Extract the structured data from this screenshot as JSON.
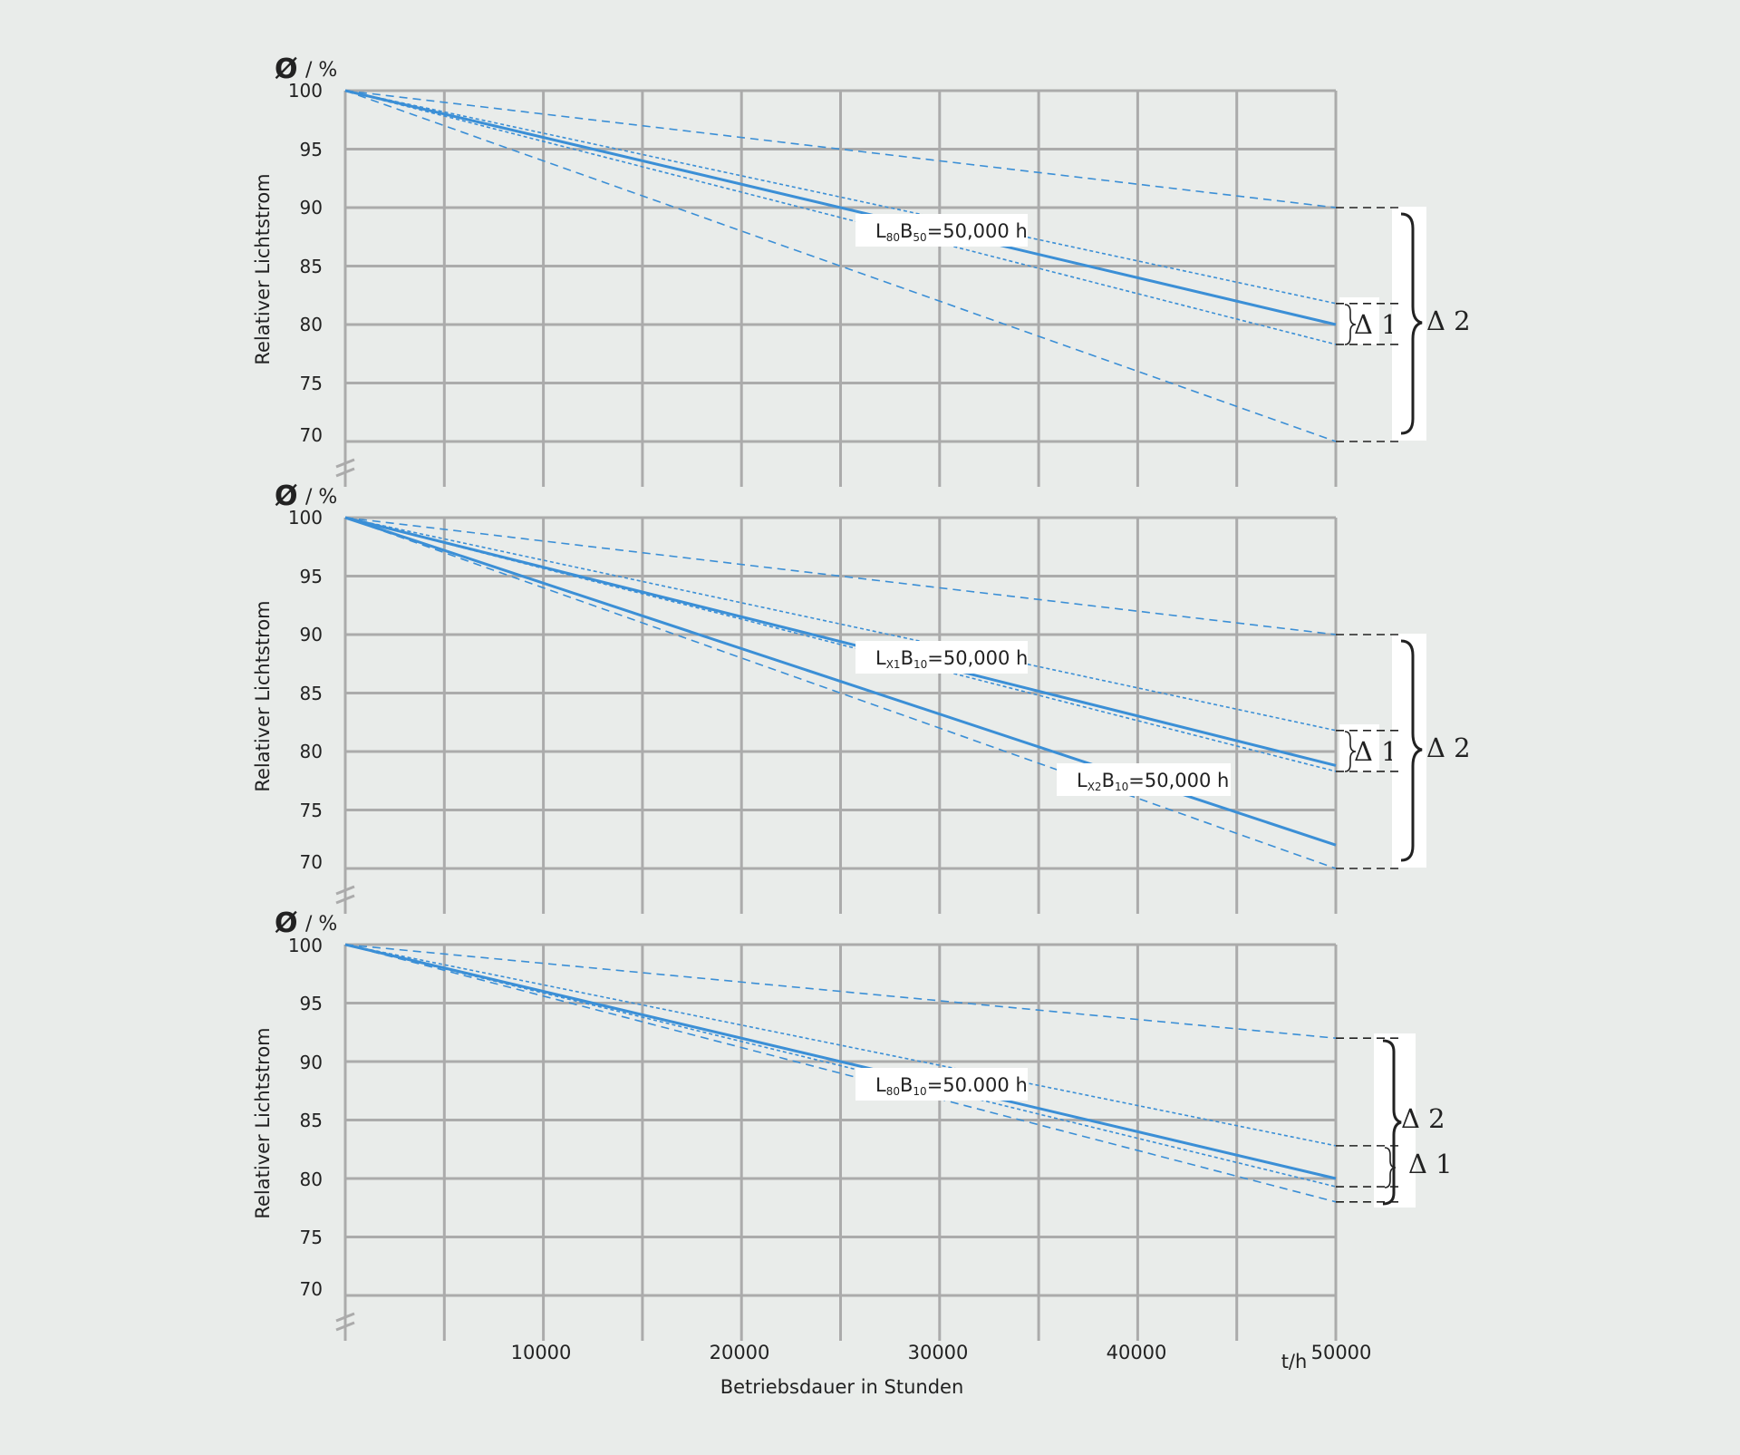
{
  "chart_data": [
    {
      "type": "line",
      "ylabel": "Relativer Lichtstrom",
      "y_unit": "/ %",
      "y_unit_symbol": "Ø",
      "yticks": [
        100,
        95,
        90,
        85,
        80,
        75,
        70
      ],
      "ylim": [
        70,
        100
      ],
      "xlim": [
        0,
        50000
      ],
      "grid": true,
      "series": [
        {
          "style": "dashed",
          "x": [
            0,
            50000
          ],
          "values": [
            100,
            90
          ]
        },
        {
          "style": "dotted",
          "x": [
            0,
            50000
          ],
          "values": [
            100,
            81.8
          ]
        },
        {
          "style": "solid",
          "x": [
            0,
            50000
          ],
          "values": [
            100,
            80
          ]
        },
        {
          "style": "dotted",
          "x": [
            0,
            50000
          ],
          "values": [
            100,
            78.3
          ]
        },
        {
          "style": "dashed",
          "x": [
            0,
            50000
          ],
          "values": [
            100,
            70
          ]
        }
      ],
      "annotations": [
        {
          "text": "L",
          "sub": "80",
          "text2": "B",
          "sub2": "50",
          "text3": "=50,000 h"
        }
      ],
      "deltas": [
        {
          "label": "Δ 1",
          "range": [
            78.3,
            81.8
          ]
        },
        {
          "label": "Δ 2",
          "range": [
            70,
            90
          ]
        }
      ]
    },
    {
      "type": "line",
      "ylabel": "Relativer Lichtstrom",
      "y_unit": "/ %",
      "y_unit_symbol": "Ø",
      "yticks": [
        100,
        95,
        90,
        85,
        80,
        75,
        70
      ],
      "ylim": [
        70,
        100
      ],
      "xlim": [
        0,
        50000
      ],
      "grid": true,
      "series": [
        {
          "style": "dashed",
          "x": [
            0,
            50000
          ],
          "values": [
            100,
            90
          ]
        },
        {
          "style": "dotted",
          "x": [
            0,
            50000
          ],
          "values": [
            100,
            81.8
          ]
        },
        {
          "style": "solid",
          "x": [
            0,
            50000
          ],
          "values": [
            100,
            78.8
          ]
        },
        {
          "style": "dotted",
          "x": [
            0,
            50000
          ],
          "values": [
            100,
            78.3
          ]
        },
        {
          "style": "solid",
          "x": [
            0,
            50000
          ],
          "values": [
            100,
            72
          ]
        },
        {
          "style": "dashed",
          "x": [
            0,
            50000
          ],
          "values": [
            100,
            70
          ]
        }
      ],
      "annotations": [
        {
          "text": "L",
          "sub": "X1",
          "text2": "B",
          "sub2": "10",
          "text3": "=50,000 h"
        },
        {
          "text": "L",
          "sub": "X2",
          "text2": "B",
          "sub2": "10",
          "text3": "=50,000 h"
        }
      ],
      "deltas": [
        {
          "label": "Δ 1",
          "range": [
            78.3,
            81.8
          ]
        },
        {
          "label": "Δ 2",
          "range": [
            70,
            90
          ]
        }
      ]
    },
    {
      "type": "line",
      "ylabel": "Relativer Lichtstrom",
      "y_unit": "/ %",
      "y_unit_symbol": "Ø",
      "yticks": [
        100,
        95,
        90,
        85,
        80,
        75,
        70
      ],
      "ylim": [
        70,
        100
      ],
      "xlim": [
        0,
        50000
      ],
      "xticks": [
        "10000",
        "20000",
        "30000",
        "40000",
        "50000"
      ],
      "x_unit": "t/h",
      "xlabel": "Betriebsdauer in Stunden",
      "grid": true,
      "series": [
        {
          "style": "dashed",
          "x": [
            0,
            50000
          ],
          "values": [
            100,
            92
          ]
        },
        {
          "style": "dotted",
          "x": [
            0,
            50000
          ],
          "values": [
            100,
            82.8
          ]
        },
        {
          "style": "solid",
          "x": [
            0,
            50000
          ],
          "values": [
            100,
            80
          ]
        },
        {
          "style": "dotted",
          "x": [
            0,
            50000
          ],
          "values": [
            100,
            79.3
          ]
        },
        {
          "style": "dashed",
          "x": [
            0,
            50000
          ],
          "values": [
            100,
            78
          ]
        }
      ],
      "annotations": [
        {
          "text": "L",
          "sub": "80",
          "text2": "B",
          "sub2": "10",
          "text3": "=50.000 h"
        }
      ],
      "deltas": [
        {
          "label": "Δ 2",
          "range": [
            78,
            92
          ]
        },
        {
          "label": "Δ 1",
          "range": [
            79.3,
            82.8
          ]
        }
      ]
    }
  ]
}
